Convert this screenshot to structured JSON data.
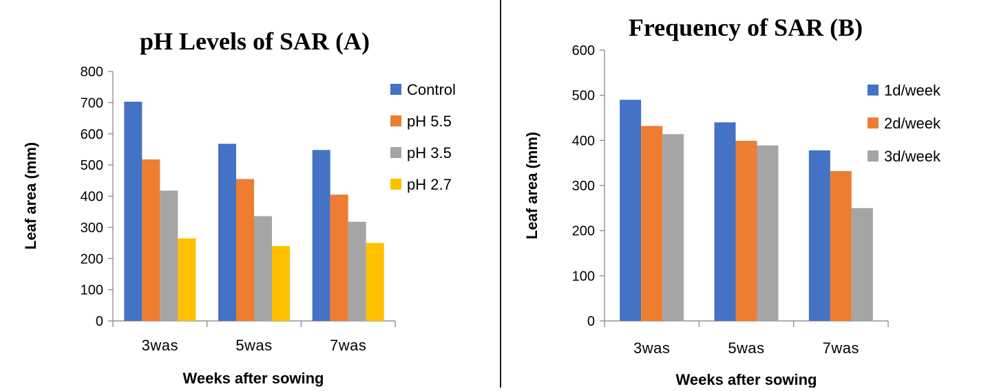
{
  "chart_data": [
    {
      "type": "bar",
      "title": "pH Levels of SAR (A)",
      "xlabel": "Weeks after sowing",
      "ylabel": "Leaf area (mm)",
      "categories": [
        "3was",
        "5was",
        "7was"
      ],
      "ylim": [
        0,
        800
      ],
      "yticks": [
        0,
        100,
        200,
        300,
        400,
        500,
        600,
        700,
        800
      ],
      "grid": false,
      "legend": "right",
      "series": [
        {
          "name": "Control",
          "color": "#4472C4",
          "values": [
            703,
            568,
            548
          ]
        },
        {
          "name": "pH 5.5",
          "color": "#ED7D31",
          "values": [
            518,
            455,
            405
          ]
        },
        {
          "name": "pH 3.5",
          "color": "#A5A5A5",
          "values": [
            418,
            336,
            318
          ]
        },
        {
          "name": "pH 2.7",
          "color": "#FFC000",
          "values": [
            265,
            240,
            250
          ]
        }
      ]
    },
    {
      "type": "bar",
      "title": "Frequency of SAR (B)",
      "xlabel": "Weeks after sowing",
      "ylabel": "Leaf area (mm)",
      "categories": [
        "3was",
        "5was",
        "7was"
      ],
      "ylim": [
        0,
        600
      ],
      "yticks": [
        0,
        100,
        200,
        300,
        400,
        500,
        600
      ],
      "grid": false,
      "legend": "right",
      "series": [
        {
          "name": "1d/week",
          "color": "#4472C4",
          "values": [
            490,
            440,
            378
          ]
        },
        {
          "name": "2d/week",
          "color": "#ED7D31",
          "values": [
            432,
            399,
            332
          ]
        },
        {
          "name": "3d/week",
          "color": "#A5A5A5",
          "values": [
            414,
            389,
            250
          ]
        }
      ]
    }
  ]
}
